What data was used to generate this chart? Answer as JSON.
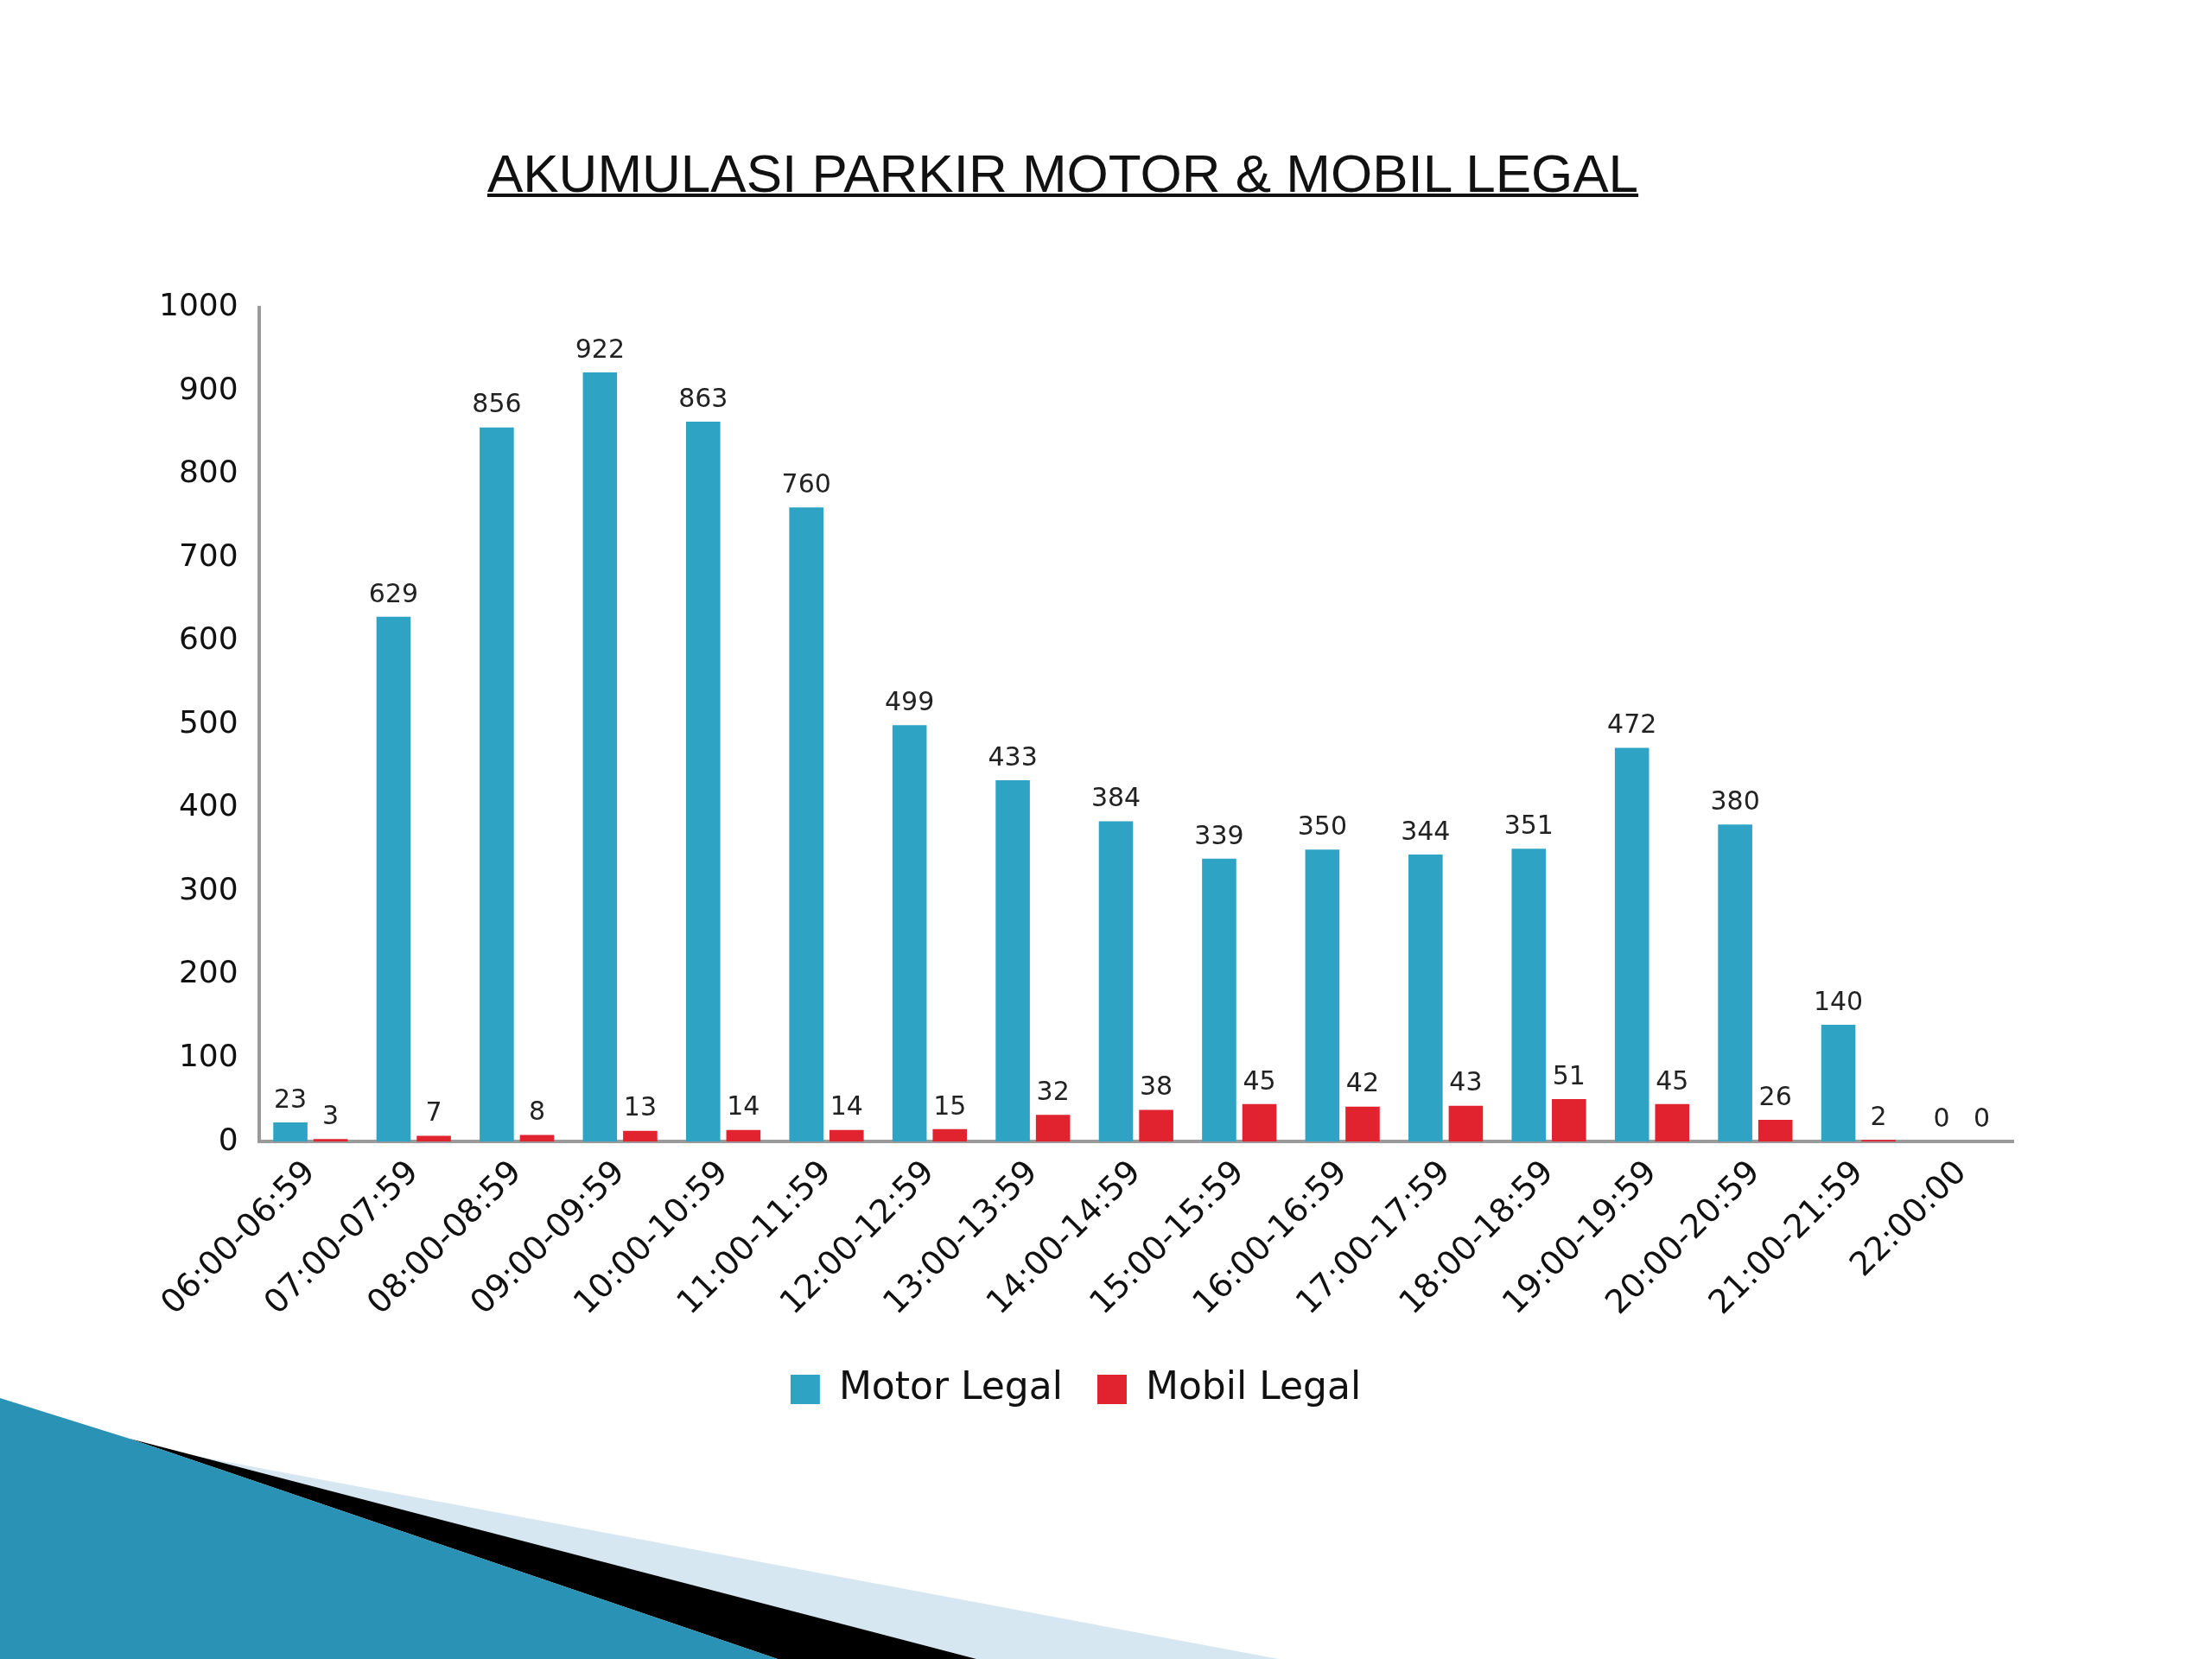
{
  "chart_data": {
    "type": "bar",
    "title": "AKUMULASI PARKIR MOTOR & MOBIL LEGAL",
    "categories": [
      "06:00-06:59",
      "07:00-07:59",
      "08:00-08:59",
      "09:00-09:59",
      "10:00-10:59",
      "11:00-11:59",
      "12:00-12:59",
      "13:00-13:59",
      "14:00-14:59",
      "15:00-15:59",
      "16:00-16:59",
      "17:00-17:59",
      "18:00-18:59",
      "19:00-19:59",
      "20:00-20:59",
      "21:00-21:59",
      "22:00:00"
    ],
    "series": [
      {
        "name": "Motor Legal",
        "color": "#2fa3c4",
        "values": [
          23,
          629,
          856,
          922,
          863,
          760,
          499,
          433,
          384,
          339,
          350,
          344,
          351,
          472,
          380,
          140,
          0
        ]
      },
      {
        "name": "Mobil Legal",
        "color": "#e0232f",
        "values": [
          3,
          7,
          8,
          13,
          14,
          14,
          15,
          32,
          38,
          45,
          42,
          43,
          51,
          45,
          26,
          2,
          0
        ]
      }
    ],
    "ylim": [
      0,
      1000
    ],
    "yticks": [
      0,
      100,
      200,
      300,
      400,
      500,
      600,
      700,
      800,
      900,
      1000
    ],
    "grid": false,
    "legend": "bottom",
    "data_labels": true
  }
}
